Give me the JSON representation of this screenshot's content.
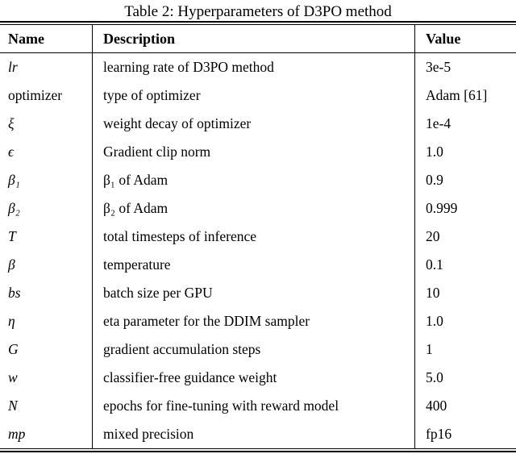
{
  "title": "Table 2: Hyperparameters of D3PO method",
  "table": {
    "headers": {
      "name": "Name",
      "description": "Description",
      "value": "Value"
    },
    "rows": [
      {
        "name": "lr",
        "name_style": "math",
        "description": "learning rate of D3PO method",
        "value": "3e-5"
      },
      {
        "name": "optimizer",
        "name_style": "roman",
        "description": "type of optimizer",
        "value": "Adam [61]"
      },
      {
        "name": "ξ",
        "name_style": "math",
        "description": "weight decay of optimizer",
        "value": "1e-4"
      },
      {
        "name": "ϵ",
        "name_style": "math",
        "description": "Gradient clip norm",
        "value": "1.0"
      },
      {
        "name": "β₁",
        "name_style": "math",
        "description": "β₁ of Adam",
        "value": "0.9"
      },
      {
        "name": "β₂",
        "name_style": "math",
        "description": "β₂ of Adam",
        "value": "0.999"
      },
      {
        "name": "T",
        "name_style": "math",
        "description": "total timesteps of inference",
        "value": "20"
      },
      {
        "name": "β",
        "name_style": "math",
        "description": "temperature",
        "value": "0.1"
      },
      {
        "name": "bs",
        "name_style": "math",
        "description": "batch size per GPU",
        "value": "10"
      },
      {
        "name": "η",
        "name_style": "math",
        "description": "eta parameter for the DDIM sampler",
        "value": "1.0"
      },
      {
        "name": "G",
        "name_style": "math",
        "description": "gradient accumulation steps",
        "value": "1"
      },
      {
        "name": "w",
        "name_style": "math",
        "description": "classifier-free guidance weight",
        "value": "5.0"
      },
      {
        "name": "N",
        "name_style": "math",
        "description": "epochs for fine-tuning with reward model",
        "value": "400"
      },
      {
        "name": "mp",
        "name_style": "math",
        "description": "mixed precision",
        "value": "fp16"
      }
    ]
  }
}
